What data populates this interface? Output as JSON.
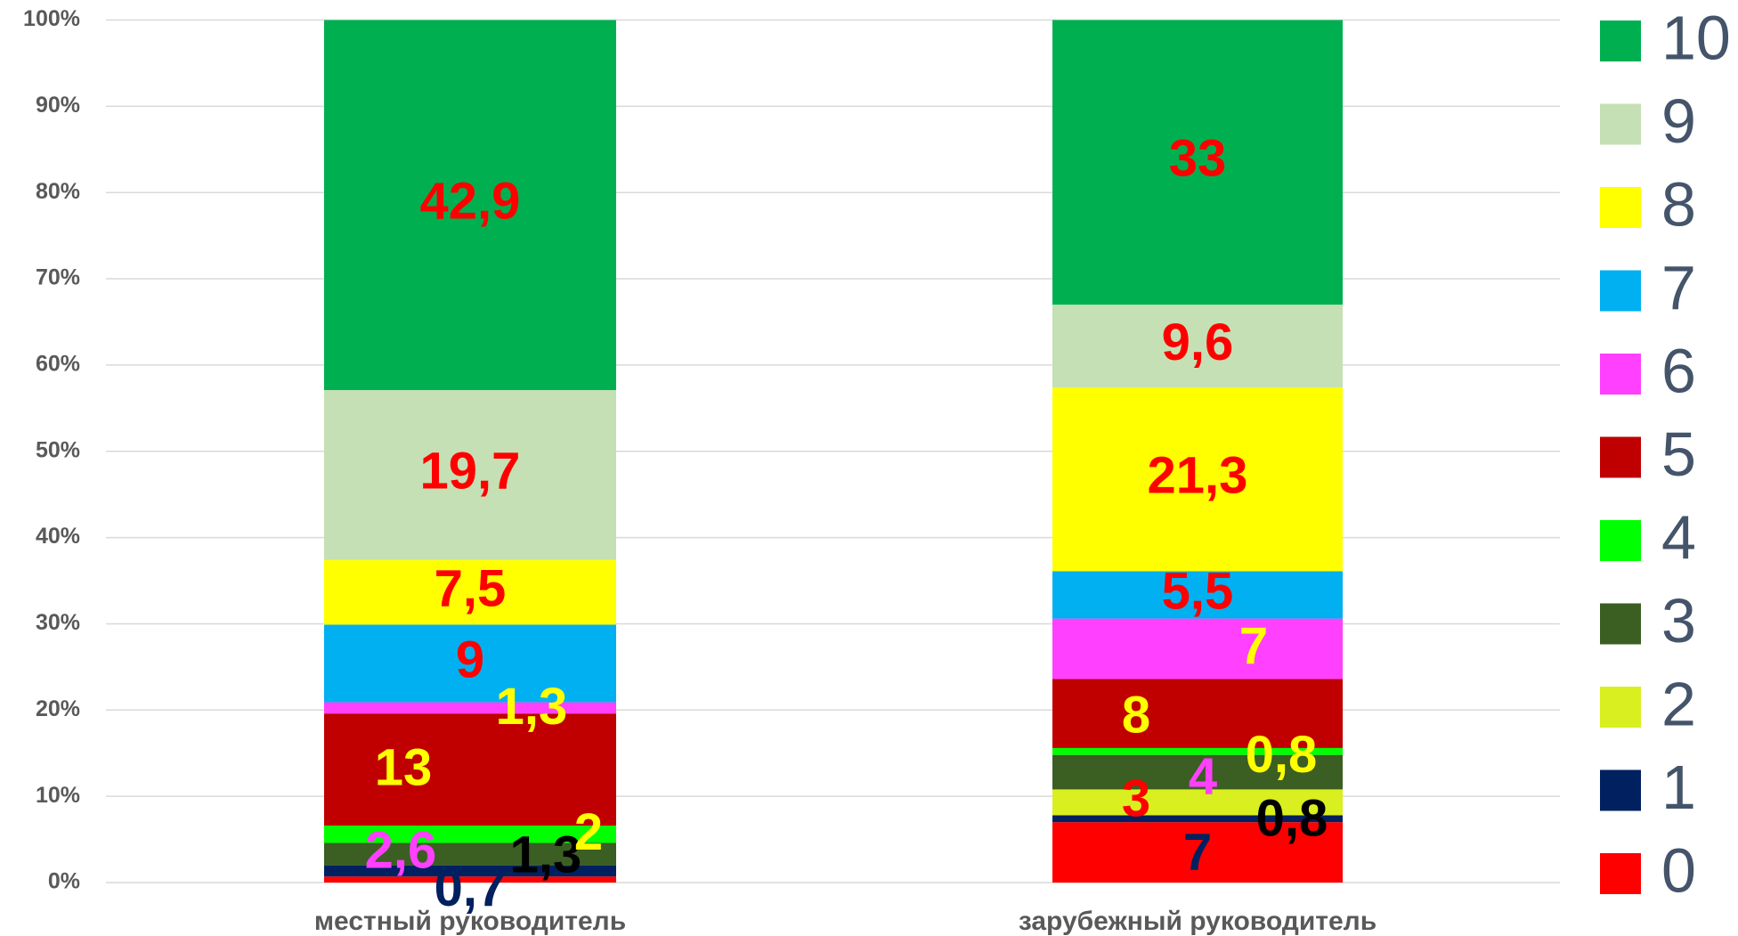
{
  "chart_data": {
    "type": "stacked_bar",
    "categories": [
      "местный руководитель",
      "зарубежный руководитель"
    ],
    "ylim": [
      0,
      100
    ],
    "yticks": [
      {
        "value": 0,
        "label": "0%"
      },
      {
        "value": 10,
        "label": "10%"
      },
      {
        "value": 20,
        "label": "20%"
      },
      {
        "value": 30,
        "label": "30%"
      },
      {
        "value": 40,
        "label": "40%"
      },
      {
        "value": 50,
        "label": "50%"
      },
      {
        "value": 60,
        "label": "60%"
      },
      {
        "value": 70,
        "label": "70%"
      },
      {
        "value": 80,
        "label": "80%"
      },
      {
        "value": 90,
        "label": "90%"
      },
      {
        "value": 100,
        "label": "100%"
      }
    ],
    "grid": true,
    "legend": "right",
    "series": [
      {
        "name": "0",
        "color": "#ff0000",
        "label_color": "#002060",
        "values": [
          0.7,
          7
        ],
        "value_labels": [
          "0,7",
          "7"
        ]
      },
      {
        "name": "1",
        "color": "#002060",
        "label_color": "#000000",
        "values": [
          1.3,
          0.8
        ],
        "value_labels": [
          "1,3",
          "0,8"
        ]
      },
      {
        "name": "2",
        "color": "#d9ef1f",
        "label_color": "#ff0000",
        "values": [
          null,
          3
        ],
        "value_labels": [
          null,
          "3"
        ]
      },
      {
        "name": "3",
        "color": "#3b5e22",
        "label_color": "#ff40ff",
        "values": [
          2.6,
          4
        ],
        "value_labels": [
          "2,6",
          "4"
        ]
      },
      {
        "name": "4",
        "color": "#00ff00",
        "label_color": "#ffff00",
        "values": [
          2,
          0.8
        ],
        "value_labels": [
          "2",
          "0,8"
        ]
      },
      {
        "name": "5",
        "color": "#c00000",
        "label_color": "#ffff00",
        "values": [
          13,
          8
        ],
        "value_labels": [
          "13",
          "8"
        ]
      },
      {
        "name": "6",
        "color": "#ff40ff",
        "label_color": "#ffff00",
        "values": [
          1.3,
          7
        ],
        "value_labels": [
          "1,3",
          "7"
        ]
      },
      {
        "name": "7",
        "color": "#00b0f0",
        "label_color": "#ff0000",
        "values": [
          9,
          5.5
        ],
        "value_labels": [
          "9",
          "5,5"
        ]
      },
      {
        "name": "8",
        "color": "#ffff00",
        "label_color": "#ff0000",
        "values": [
          7.5,
          21.3
        ],
        "value_labels": [
          "7,5",
          "21,3"
        ]
      },
      {
        "name": "9",
        "color": "#c5e0b4",
        "label_color": "#ff0000",
        "values": [
          19.7,
          9.6
        ],
        "value_labels": [
          "19,7",
          "9,6"
        ]
      },
      {
        "name": "10",
        "color": "#00b050",
        "label_color": "#ff0000",
        "values": [
          42.9,
          33
        ],
        "value_labels": [
          "42,9",
          "33"
        ]
      }
    ]
  }
}
